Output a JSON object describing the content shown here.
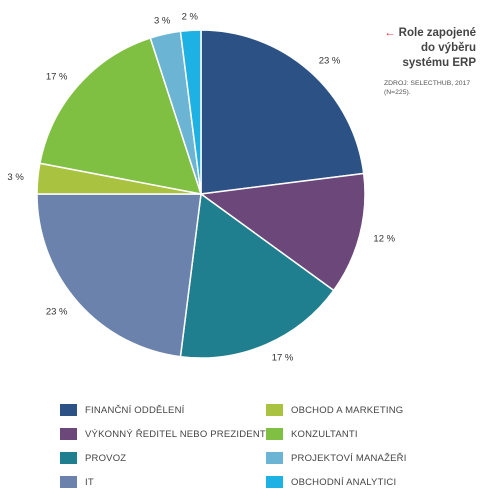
{
  "title": "Role zapojené do výběru systému ERP",
  "title_arrow": "←",
  "source": "ZDROJ: SELECTHUB, 2017 (N=225).",
  "colors": {
    "financni": "#2c5285",
    "vykonny": "#6b4879",
    "provoz": "#1f7f8e",
    "it": "#6a82ac",
    "obchod": "#a9c23f",
    "konzultanti": "#7fbf42",
    "projektovi": "#6cb4d4",
    "analytici": "#1db2e3"
  },
  "chart_data": {
    "type": "pie",
    "title": "Role zapojené do výběru systému ERP",
    "start_angle_deg": 0,
    "direction": "clockwise",
    "legend_position": "bottom",
    "slices": [
      {
        "name": "FINANČNÍ ODDĚLENÍ",
        "value": 23,
        "label": "23 %",
        "color_key": "financni"
      },
      {
        "name": "VÝKONNÝ ŘEDITEL NEBO PREZIDENT",
        "value": 12,
        "label": "12 %",
        "color_key": "vykonny"
      },
      {
        "name": "PROVOZ",
        "value": 17,
        "label": "17 %",
        "color_key": "provoz"
      },
      {
        "name": "IT",
        "value": 23,
        "label": "23 %",
        "color_key": "it"
      },
      {
        "name": "OBCHOD A MARKETING",
        "value": 3,
        "label": "3 %",
        "color_key": "obchod"
      },
      {
        "name": "KONZULTANTI",
        "value": 17,
        "label": "17 %",
        "color_key": "konzultanti"
      },
      {
        "name": "PROJEKTOVÍ MANAŽEŘI",
        "value": 3,
        "label": "3 %",
        "color_key": "projektovi"
      },
      {
        "name": "OBCHODNÍ ANALYTICI",
        "value": 2,
        "label": "2 %",
        "color_key": "analytici"
      }
    ]
  }
}
